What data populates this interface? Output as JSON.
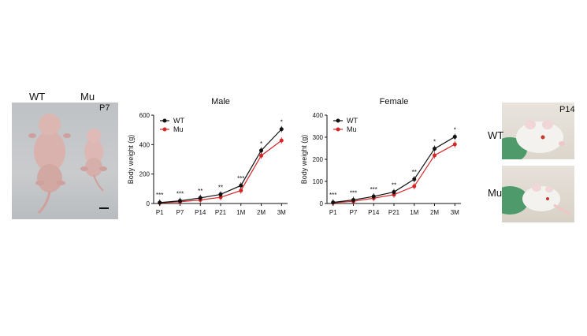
{
  "photo_left": {
    "label_wt": "WT",
    "label_mu": "Mu",
    "age": "P7"
  },
  "photo_right": {
    "age": "P14",
    "label_wt": "WT",
    "label_mu": "Mu"
  },
  "chart_data": [
    {
      "type": "line",
      "title": "Male",
      "ylabel": "Body weight (g)",
      "xlabel": "",
      "categories": [
        "P1",
        "P7",
        "P14",
        "P21",
        "1M",
        "2M",
        "3M"
      ],
      "ylim": [
        0,
        600
      ],
      "yticks": [
        0,
        200,
        400,
        600
      ],
      "grid": false,
      "legend": "top-left",
      "significance": [
        "***",
        "***",
        "**",
        "**",
        "***",
        "*",
        "*"
      ],
      "series": [
        {
          "name": "WT",
          "color": "#111111",
          "values": [
            6,
            18,
            38,
            62,
            122,
            360,
            505
          ]
        },
        {
          "name": "Mu",
          "color": "#d62728",
          "values": [
            4,
            12,
            24,
            42,
            88,
            325,
            428
          ]
        }
      ]
    },
    {
      "type": "line",
      "title": "Female",
      "ylabel": "Body weight (g)",
      "xlabel": "",
      "categories": [
        "P1",
        "P7",
        "P14",
        "P21",
        "1M",
        "2M",
        "3M"
      ],
      "ylim": [
        0,
        400
      ],
      "yticks": [
        0,
        100,
        200,
        300,
        400
      ],
      "grid": false,
      "legend": "top-left",
      "significance": [
        "***",
        "***",
        "***",
        "**",
        "**",
        "*",
        "*"
      ],
      "series": [
        {
          "name": "WT",
          "color": "#111111",
          "values": [
            5,
            16,
            32,
            52,
            110,
            248,
            302
          ]
        },
        {
          "name": "Mu",
          "color": "#d62728",
          "values": [
            3,
            10,
            24,
            40,
            78,
            218,
            268
          ]
        }
      ]
    }
  ]
}
